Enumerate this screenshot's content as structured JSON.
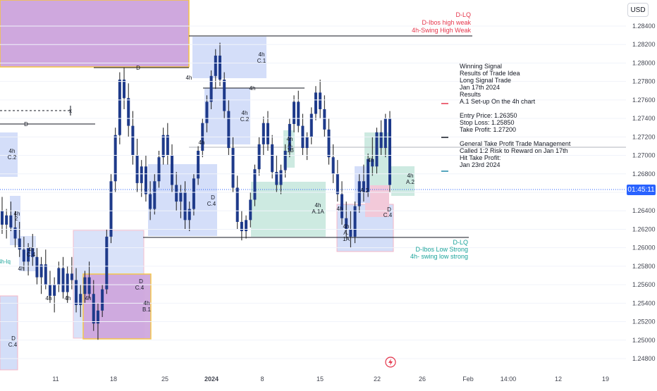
{
  "currency": "USD",
  "countdown": "01:45:11",
  "colors": {
    "up": "#1e3a8a",
    "down": "#1e3a8a",
    "wick": "#1a1a1a",
    "blue_zone": "#c9d6f7",
    "purple_zone": "#cfa8de",
    "green_zone": "#c8e8de",
    "pink_zone": "#f2c9d9",
    "gold_border": "#f5c542",
    "red_text": "#e5364c",
    "teal_text": "#1aa39a",
    "grid": "#f0f3fa",
    "current_line": "#2962ff"
  },
  "chart_data": {
    "type": "candlestick",
    "ylim": [
      1.2473,
      1.2868
    ],
    "y_ticks": [
      "1.28400",
      "1.28200",
      "1.28000",
      "1.27800",
      "1.27600",
      "1.27400",
      "1.27200",
      "1.27000",
      "1.26800",
      "1.26600",
      "1.26400",
      "1.26200",
      "1.26000",
      "1.25800",
      "1.25600",
      "1.25400",
      "1.25200",
      "1.25000",
      "1.24800"
    ],
    "x_ticks": [
      "11",
      "18",
      "25",
      "2024",
      "8",
      "15",
      "22",
      "26",
      "Feb",
      "14:00",
      "12",
      "19"
    ],
    "current_price_label": "01:45:11",
    "top_right_labels": [
      "D-LQ",
      "D-Ibos high weak",
      "4h-Swing High Weak"
    ],
    "bottom_right_labels": [
      "D-LQ",
      "D-Ibos Low Strong",
      "4h- swing low strong"
    ],
    "left_label": "4h-lq",
    "line_labels": [
      "D",
      "D",
      "4h",
      "x"
    ],
    "zone_labels": [
      "4h C.1",
      "4h C.2",
      "4h C.2",
      "D C.4",
      "4h A. 1B",
      "4h A.1A",
      "4h A. 1A",
      "4h A.2",
      "4h A.2",
      "D C.4",
      "D C.4",
      "4h B.1",
      "D C.4",
      "4h",
      "4h",
      "4h",
      "4h",
      "4h"
    ],
    "notes": [
      "Winning Signal",
      "Results of Trade Idea",
      "Long Signal Trade",
      "Jan 17th 2024",
      "Results",
      "A.1 Set-up On the 4h chart",
      "Entry Price: 1.26350",
      "Stop Loss: 1.25850",
      "Take Profit:   1.27200",
      "General Take Profit Trade Management",
      "Called 1:2 Risk to Reward on Jan 17th",
      "Hit Take Profit:",
      "Jan 23rd 2024"
    ],
    "candles": [
      [
        1.264,
        1.2655,
        1.2615,
        1.2625
      ],
      [
        1.2625,
        1.2642,
        1.261,
        1.2635
      ],
      [
        1.2635,
        1.265,
        1.2618,
        1.2622
      ],
      [
        1.2622,
        1.264,
        1.26,
        1.261
      ],
      [
        1.261,
        1.2628,
        1.259,
        1.2598
      ],
      [
        1.2598,
        1.2612,
        1.2575,
        1.2585
      ],
      [
        1.2585,
        1.2605,
        1.257,
        1.26
      ],
      [
        1.26,
        1.2615,
        1.258,
        1.259
      ],
      [
        1.259,
        1.26,
        1.256,
        1.2568
      ],
      [
        1.2568,
        1.259,
        1.255,
        1.2582
      ],
      [
        1.2582,
        1.2598,
        1.2555,
        1.256
      ],
      [
        1.256,
        1.2575,
        1.254,
        1.2548
      ],
      [
        1.2548,
        1.2568,
        1.253,
        1.256
      ],
      [
        1.256,
        1.2585,
        1.2552,
        1.2578
      ],
      [
        1.2578,
        1.259,
        1.2545,
        1.2552
      ],
      [
        1.2552,
        1.258,
        1.254,
        1.2572
      ],
      [
        1.2572,
        1.259,
        1.2555,
        1.2565
      ],
      [
        1.2565,
        1.2578,
        1.253,
        1.2538
      ],
      [
        1.2538,
        1.256,
        1.2525,
        1.255
      ],
      [
        1.255,
        1.2575,
        1.254,
        1.2568
      ],
      [
        1.2568,
        1.2585,
        1.2545,
        1.255
      ],
      [
        1.255,
        1.2565,
        1.251,
        1.2518
      ],
      [
        1.2518,
        1.254,
        1.25,
        1.2532
      ],
      [
        1.2532,
        1.256,
        1.2525,
        1.2555
      ],
      [
        1.2555,
        1.262,
        1.255,
        1.2612
      ],
      [
        1.2612,
        1.268,
        1.2605,
        1.2672
      ],
      [
        1.2672,
        1.273,
        1.266,
        1.2722
      ],
      [
        1.2722,
        1.279,
        1.2712,
        1.2782
      ],
      [
        1.2782,
        1.2795,
        1.275,
        1.2762
      ],
      [
        1.2762,
        1.2778,
        1.272,
        1.2732
      ],
      [
        1.2732,
        1.2748,
        1.269,
        1.27
      ],
      [
        1.27,
        1.2718,
        1.266,
        1.267
      ],
      [
        1.267,
        1.2695,
        1.2655,
        1.2688
      ],
      [
        1.2688,
        1.27,
        1.265,
        1.2658
      ],
      [
        1.2658,
        1.2672,
        1.263,
        1.2642
      ],
      [
        1.2642,
        1.268,
        1.2636,
        1.2672
      ],
      [
        1.2672,
        1.2705,
        1.2665,
        1.2698
      ],
      [
        1.2698,
        1.273,
        1.269,
        1.2722
      ],
      [
        1.2722,
        1.2735,
        1.269,
        1.27
      ],
      [
        1.27,
        1.2712,
        1.266,
        1.2668
      ],
      [
        1.2668,
        1.2682,
        1.264,
        1.265
      ],
      [
        1.265,
        1.2668,
        1.2632,
        1.266
      ],
      [
        1.266,
        1.2672,
        1.262,
        1.263
      ],
      [
        1.263,
        1.265,
        1.2618,
        1.2642
      ],
      [
        1.2642,
        1.268,
        1.2635,
        1.2675
      ],
      [
        1.2675,
        1.271,
        1.2668,
        1.2705
      ],
      [
        1.2705,
        1.274,
        1.2698,
        1.2735
      ],
      [
        1.2735,
        1.2765,
        1.2725,
        1.2758
      ],
      [
        1.2758,
        1.2792,
        1.275,
        1.2786
      ],
      [
        1.2786,
        1.2815,
        1.2772,
        1.2808
      ],
      [
        1.2808,
        1.2822,
        1.2775,
        1.2782
      ],
      [
        1.2782,
        1.279,
        1.274,
        1.2748
      ],
      [
        1.2748,
        1.276,
        1.27,
        1.2708
      ],
      [
        1.2708,
        1.272,
        1.266,
        1.2665
      ],
      [
        1.2665,
        1.2678,
        1.262,
        1.2628
      ],
      [
        1.2628,
        1.264,
        1.2608,
        1.2618
      ],
      [
        1.2618,
        1.2635,
        1.261,
        1.263
      ],
      [
        1.263,
        1.266,
        1.2622,
        1.2652
      ],
      [
        1.2652,
        1.269,
        1.2645,
        1.2685
      ],
      [
        1.2685,
        1.272,
        1.2678,
        1.2712
      ],
      [
        1.2712,
        1.2742,
        1.27,
        1.2735
      ],
      [
        1.2735,
        1.2748,
        1.2705,
        1.2712
      ],
      [
        1.2712,
        1.2722,
        1.2675,
        1.2682
      ],
      [
        1.2682,
        1.27,
        1.266,
        1.2668
      ],
      [
        1.2668,
        1.269,
        1.2658,
        1.2684
      ],
      [
        1.2684,
        1.2712,
        1.2676,
        1.2705
      ],
      [
        1.2705,
        1.274,
        1.2698,
        1.2734
      ],
      [
        1.2734,
        1.2765,
        1.2725,
        1.2758
      ],
      [
        1.2758,
        1.277,
        1.2725,
        1.2732
      ],
      [
        1.2732,
        1.2745,
        1.27,
        1.2708
      ],
      [
        1.2708,
        1.2725,
        1.2695,
        1.272
      ],
      [
        1.272,
        1.2752,
        1.2712,
        1.2745
      ],
      [
        1.2745,
        1.2775,
        1.2738,
        1.2768
      ],
      [
        1.2768,
        1.2782,
        1.274,
        1.275
      ],
      [
        1.275,
        1.2765,
        1.272,
        1.2728
      ],
      [
        1.2728,
        1.274,
        1.269,
        1.2698
      ],
      [
        1.2698,
        1.2712,
        1.267,
        1.268
      ],
      [
        1.268,
        1.2695,
        1.265,
        1.2658
      ],
      [
        1.2658,
        1.2672,
        1.2625,
        1.2632
      ],
      [
        1.2632,
        1.265,
        1.261,
        1.262
      ],
      [
        1.262,
        1.264,
        1.26,
        1.2612
      ],
      [
        1.2612,
        1.265,
        1.2605,
        1.2645
      ],
      [
        1.2645,
        1.268,
        1.2638,
        1.2672
      ],
      [
        1.2672,
        1.269,
        1.265,
        1.266
      ],
      [
        1.266,
        1.2702,
        1.2655,
        1.2696
      ],
      [
        1.2696,
        1.272,
        1.2678,
        1.2688
      ],
      [
        1.2688,
        1.273,
        1.268,
        1.2725
      ],
      [
        1.2725,
        1.2738,
        1.27,
        1.2708
      ],
      [
        1.2708,
        1.2745,
        1.2698,
        1.274
      ],
      [
        1.274,
        1.2748,
        1.266,
        1.2668
      ]
    ]
  }
}
